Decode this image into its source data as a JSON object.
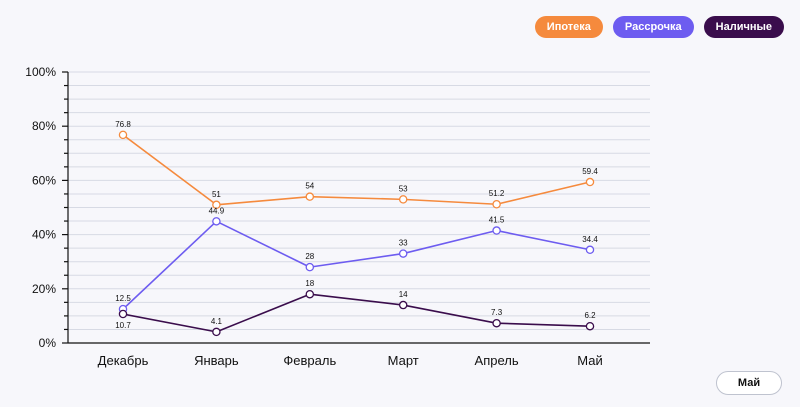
{
  "legend": [
    {
      "label": "Ипотека",
      "color": "#f58a3d"
    },
    {
      "label": "Рассрочка",
      "color": "#6d5cf0"
    },
    {
      "label": "Наличные",
      "color": "#3a0d4c"
    }
  ],
  "controls": {
    "period_button": "Май"
  },
  "chart_data": {
    "type": "line",
    "categories": [
      "Декабрь",
      "Январь",
      "Февраль",
      "Март",
      "Апрель",
      "Май"
    ],
    "ylim": [
      0,
      100
    ],
    "y_ticks": [
      "0%",
      "20%",
      "40%",
      "60%",
      "80%",
      "100%"
    ],
    "grid": true,
    "legend_position": "top-right",
    "series": [
      {
        "name": "Ипотека",
        "color": "#f58a3d",
        "values": [
          76.8,
          51,
          54,
          53,
          51.2,
          59.4
        ]
      },
      {
        "name": "Рассрочка",
        "color": "#6d5cf0",
        "values": [
          12.5,
          44.9,
          28,
          33,
          41.5,
          34.4
        ]
      },
      {
        "name": "Наличные",
        "color": "#3a0d4c",
        "values": [
          10.7,
          4.1,
          18,
          14,
          7.3,
          6.2
        ]
      }
    ]
  }
}
